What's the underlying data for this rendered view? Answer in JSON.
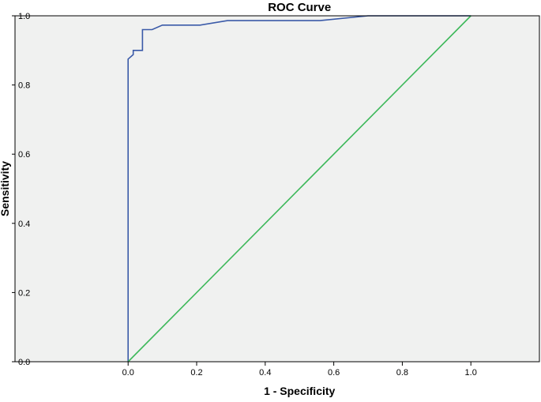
{
  "chart_data": {
    "type": "line",
    "title": "ROC Curve",
    "xlabel": "1 - Specificity",
    "ylabel": "Sensitivity",
    "xlim": [
      -0.33,
      1.2
    ],
    "ylim": [
      0,
      1
    ],
    "x_ticks": [
      0.0,
      0.2,
      0.4,
      0.6,
      0.8,
      1.0
    ],
    "y_ticks": [
      0.0,
      0.2,
      0.4,
      0.6,
      0.8,
      1.0
    ],
    "x_tick_labels": [
      "0.0",
      "0.2",
      "0.4",
      "0.6",
      "0.8",
      "1.0"
    ],
    "y_tick_labels": [
      "0.0",
      "0.2",
      "0.4",
      "0.6",
      "0.8",
      "1.0"
    ],
    "grid": false,
    "legend": "none",
    "series": [
      {
        "color": "#3a5aa8",
        "x": [
          0.0,
          0.0,
          0.0,
          0.015,
          0.015,
          0.03,
          0.03,
          0.042,
          0.042,
          0.07,
          0.07,
          0.1,
          0.21,
          0.29,
          0.56,
          0.7,
          1.0
        ],
        "y": [
          0.0,
          0.87,
          0.875,
          0.888,
          0.9,
          0.9,
          0.9,
          0.9,
          0.96,
          0.96,
          0.96,
          0.973,
          0.973,
          0.986,
          0.986,
          1.0,
          1.0
        ]
      },
      {
        "color": "#3db85a",
        "x": [
          0.0,
          1.0
        ],
        "y": [
          0.0,
          1.0
        ]
      }
    ],
    "plot_background": "#f0f1f0"
  }
}
